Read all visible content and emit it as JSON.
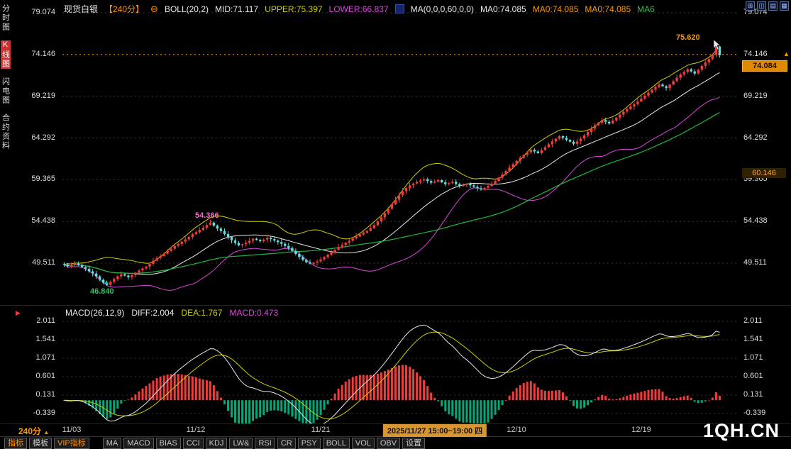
{
  "header": {
    "symbol": "现货白银",
    "period": "【240分】",
    "boll_label": "BOLL(20,2)",
    "mid": "MID:71.117",
    "upper": "UPPER:75.397",
    "lower": "LOWER:66.837",
    "ma_label": "MA(0,0,0,60,0,0)",
    "ma1": "MA0:74.085",
    "ma2": "MA0:74.085",
    "ma3": "MA0:74.085",
    "ma4": "MA6"
  },
  "window_icons": [
    "⊞",
    "◫",
    "▤",
    "▦"
  ],
  "icons": {
    "minus_circle": "⊖",
    "up_triangle": "▲",
    "right_triangle": "▶"
  },
  "sidebar": {
    "items": [
      "分时图",
      "K线图",
      "闪电图",
      "合约资料"
    ],
    "names": [
      "tab-time-chart",
      "tab-candle-chart",
      "tab-flash-chart",
      "tab-contract-info"
    ],
    "active": "K线图"
  },
  "annotations": {
    "high": "75.620",
    "peak": "54.366",
    "low": "46.840"
  },
  "badges": {
    "current_price": "74.084",
    "settlement": "60.146"
  },
  "macd_header": {
    "name": "MACD(26,12,9)",
    "diff": "DIFF:2.004",
    "dea": "DEA:1.767",
    "macd": "MACD:0.473"
  },
  "bottom": {
    "period": "240分",
    "watermark": "1QH.CN",
    "tabs": [
      {
        "label": "指标",
        "name": "tab-indicators",
        "accent": true
      },
      {
        "label": "模板",
        "name": "tab-templates"
      },
      {
        "label": "VIP指标",
        "name": "tab-vip-indicators",
        "accent": true
      },
      {
        "label": "MA",
        "name": "tab-ma",
        "gap": true
      },
      {
        "label": "MACD",
        "name": "tab-macd"
      },
      {
        "label": "BIAS",
        "name": "tab-bias"
      },
      {
        "label": "CCI",
        "name": "tab-cci"
      },
      {
        "label": "KDJ",
        "name": "tab-kdj"
      },
      {
        "label": "LW&",
        "name": "tab-lwr"
      },
      {
        "label": "RSI",
        "name": "tab-rsi"
      },
      {
        "label": "CR",
        "name": "tab-cr"
      },
      {
        "label": "PSY",
        "name": "tab-psy"
      },
      {
        "label": "BOLL",
        "name": "tab-boll"
      },
      {
        "label": "VOL",
        "name": "tab-vol"
      },
      {
        "label": "OBV",
        "name": "tab-obv"
      },
      {
        "label": "设置",
        "name": "tab-settings"
      }
    ]
  },
  "chart_data": {
    "type": "candlestick",
    "symbol": "现货白银",
    "period": "240min",
    "price_axis": [
      79.074,
      74.146,
      69.219,
      64.292,
      59.365,
      54.438,
      49.511
    ],
    "macd_axis": [
      2.011,
      1.541,
      1.071,
      0.601,
      0.131,
      -0.339
    ],
    "ref_line": 74.146,
    "indicators": {
      "boll": [
        20,
        2
      ],
      "ma": [
        60
      ],
      "macd": [
        26,
        12,
        9
      ]
    },
    "markers": {
      "low": {
        "index": 12,
        "price": 46.84
      },
      "high": {
        "index": 183,
        "price": 75.62
      }
    },
    "x_ticks": [
      {
        "label": "11/03",
        "slot": 2
      },
      {
        "label": "11/12",
        "slot": 37
      },
      {
        "label": "11/21",
        "slot": 72
      },
      {
        "label": "12/10",
        "slot": 127
      },
      {
        "label": "12/19",
        "slot": 162
      }
    ],
    "x_highlight": {
      "label": "2025/11/27 15:00~19:00 四",
      "slot": 104
    },
    "closes": [
      49.35,
      49.15,
      49.28,
      49.45,
      49.3,
      49.05,
      48.85,
      48.55,
      48.3,
      47.95,
      47.55,
      47.2,
      46.95,
      47.3,
      47.65,
      47.95,
      48.2,
      48.05,
      47.85,
      48.1,
      48.4,
      48.65,
      48.88,
      49.1,
      49.42,
      49.8,
      50.12,
      50.35,
      50.62,
      50.95,
      51.22,
      51.55,
      51.78,
      52.05,
      52.32,
      52.6,
      52.92,
      53.15,
      53.42,
      53.7,
      54.02,
      54.3,
      53.95,
      53.6,
      53.3,
      52.95,
      52.6,
      52.2,
      51.9,
      51.62,
      51.75,
      51.92,
      52.15,
      52.4,
      52.25,
      52.1,
      52.3,
      52.5,
      52.35,
      52.18,
      52.0,
      51.8,
      51.55,
      51.3,
      50.95,
      50.6,
      50.25,
      49.9,
      49.62,
      49.45,
      49.58,
      49.72,
      49.95,
      50.22,
      50.5,
      50.82,
      51.1,
      51.4,
      51.65,
      51.92,
      52.15,
      52.42,
      52.65,
      52.9,
      53.1,
      53.32,
      53.65,
      54.0,
      54.45,
      54.92,
      55.4,
      55.92,
      56.45,
      57.0,
      57.52,
      58.0,
      58.38,
      58.7,
      58.92,
      59.1,
      59.28,
      59.42,
      59.2,
      59.0,
      59.15,
      59.32,
      59.05,
      58.82,
      58.95,
      59.12,
      58.85,
      58.62,
      58.75,
      58.9,
      58.7,
      58.52,
      58.35,
      58.22,
      58.4,
      58.62,
      58.9,
      59.22,
      59.6,
      60.0,
      60.4,
      60.8,
      61.2,
      61.6,
      61.95,
      62.3,
      62.6,
      62.9,
      62.7,
      62.5,
      62.85,
      63.2,
      63.55,
      63.9,
      64.2,
      64.5,
      64.3,
      64.08,
      63.85,
      63.6,
      63.9,
      64.22,
      64.6,
      65.0,
      65.4,
      65.8,
      66.1,
      66.4,
      66.2,
      66.0,
      66.35,
      66.7,
      67.05,
      67.4,
      67.7,
      68.0,
      68.3,
      68.6,
      68.95,
      69.3,
      69.65,
      70.0,
      70.3,
      70.6,
      70.4,
      70.18,
      70.6,
      71.0,
      71.4,
      71.8,
      72.1,
      72.4,
      72.15,
      71.9,
      72.35,
      72.8,
      73.2,
      73.6,
      74.1,
      75.1,
      74.08
    ],
    "colors": {
      "up": "#f23c3c",
      "down": "#62dede",
      "boll_upper": "#cfcf00",
      "boll_mid": "#e8e8e8",
      "boll_lower": "#dc46dc",
      "ma60": "#1fb83c",
      "diff": "#e8e8e8",
      "dea": "#cfcf00",
      "hist_pos": "#f23c3c",
      "hist_neg": "#00a87a",
      "grid": "#3a3a3a",
      "accent": "#ff9600"
    }
  }
}
